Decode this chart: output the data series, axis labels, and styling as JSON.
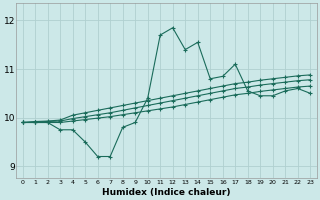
{
  "title": "",
  "xlabel": "Humidex (Indice chaleur)",
  "ylabel": "",
  "background_color": "#cce8e8",
  "grid_color": "#b0d0d0",
  "line_color": "#1a6b5a",
  "x_values": [
    0,
    1,
    2,
    3,
    4,
    5,
    6,
    7,
    8,
    9,
    10,
    11,
    12,
    13,
    14,
    15,
    16,
    17,
    18,
    19,
    20,
    21,
    22,
    23
  ],
  "line1": [
    9.9,
    9.9,
    9.9,
    9.75,
    9.75,
    9.5,
    9.2,
    9.2,
    9.8,
    9.9,
    10.4,
    11.7,
    11.85,
    11.4,
    11.55,
    10.8,
    10.85,
    11.1,
    10.55,
    10.45,
    10.45,
    10.55,
    10.6,
    10.5
  ],
  "line2": [
    9.9,
    9.92,
    9.93,
    9.95,
    10.05,
    10.1,
    10.15,
    10.2,
    10.25,
    10.3,
    10.35,
    10.4,
    10.45,
    10.5,
    10.55,
    10.6,
    10.65,
    10.7,
    10.73,
    10.77,
    10.8,
    10.83,
    10.86,
    10.88
  ],
  "line3": [
    9.9,
    9.91,
    9.92,
    9.93,
    9.98,
    10.02,
    10.06,
    10.1,
    10.15,
    10.2,
    10.25,
    10.3,
    10.35,
    10.4,
    10.45,
    10.5,
    10.55,
    10.6,
    10.63,
    10.67,
    10.7,
    10.73,
    10.76,
    10.78
  ],
  "line4": [
    9.9,
    9.9,
    9.9,
    9.9,
    9.93,
    9.96,
    9.99,
    10.02,
    10.06,
    10.1,
    10.14,
    10.18,
    10.22,
    10.27,
    10.32,
    10.37,
    10.42,
    10.47,
    10.5,
    10.54,
    10.57,
    10.6,
    10.63,
    10.65
  ],
  "xlim": [
    -0.5,
    23.5
  ],
  "ylim": [
    8.75,
    12.35
  ],
  "yticks": [
    9,
    10,
    11,
    12
  ],
  "ytick_labels": [
    "9",
    "10",
    "11",
    "12"
  ],
  "xticks": [
    0,
    1,
    2,
    3,
    4,
    5,
    6,
    7,
    8,
    9,
    10,
    11,
    12,
    13,
    14,
    15,
    16,
    17,
    18,
    19,
    20,
    21,
    22,
    23
  ],
  "xtick_labels": [
    "0",
    "1",
    "2",
    "3",
    "4",
    "5",
    "6",
    "7",
    "8",
    "9",
    "10",
    "11",
    "12",
    "13",
    "14",
    "15",
    "16",
    "17",
    "18",
    "19",
    "20",
    "21",
    "22",
    "23"
  ]
}
